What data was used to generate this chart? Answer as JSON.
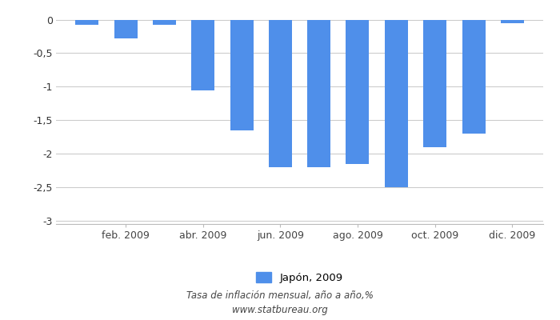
{
  "months": [
    1,
    2,
    3,
    4,
    5,
    6,
    7,
    8,
    9,
    10,
    11,
    12
  ],
  "values": [
    -0.08,
    -0.28,
    -0.08,
    -1.05,
    -1.65,
    -2.2,
    -2.2,
    -2.15,
    -2.5,
    -1.9,
    -1.7,
    -0.05
  ],
  "bar_color": "#4f8fea",
  "ylim": [
    -3.05,
    0.15
  ],
  "yticks": [
    0,
    -0.5,
    -1.0,
    -1.5,
    -2.0,
    -2.5,
    -3.0
  ],
  "ytick_labels": [
    "0",
    "-0,5",
    "-1",
    "-1,5",
    "-2",
    "-2,5",
    "-3"
  ],
  "xtick_positions": [
    2,
    4,
    6,
    8,
    10,
    12
  ],
  "xtick_labels": [
    "feb. 2009",
    "abr. 2009",
    "jun. 2009",
    "ago. 2009",
    "oct. 2009",
    "dic. 2009"
  ],
  "legend_label": "Japón, 2009",
  "footnote_line1": "Tasa de inflación mensual, año a año,%",
  "footnote_line2": "www.statbureau.org",
  "background_color": "#ffffff",
  "grid_color": "#cccccc",
  "bar_width": 0.6
}
